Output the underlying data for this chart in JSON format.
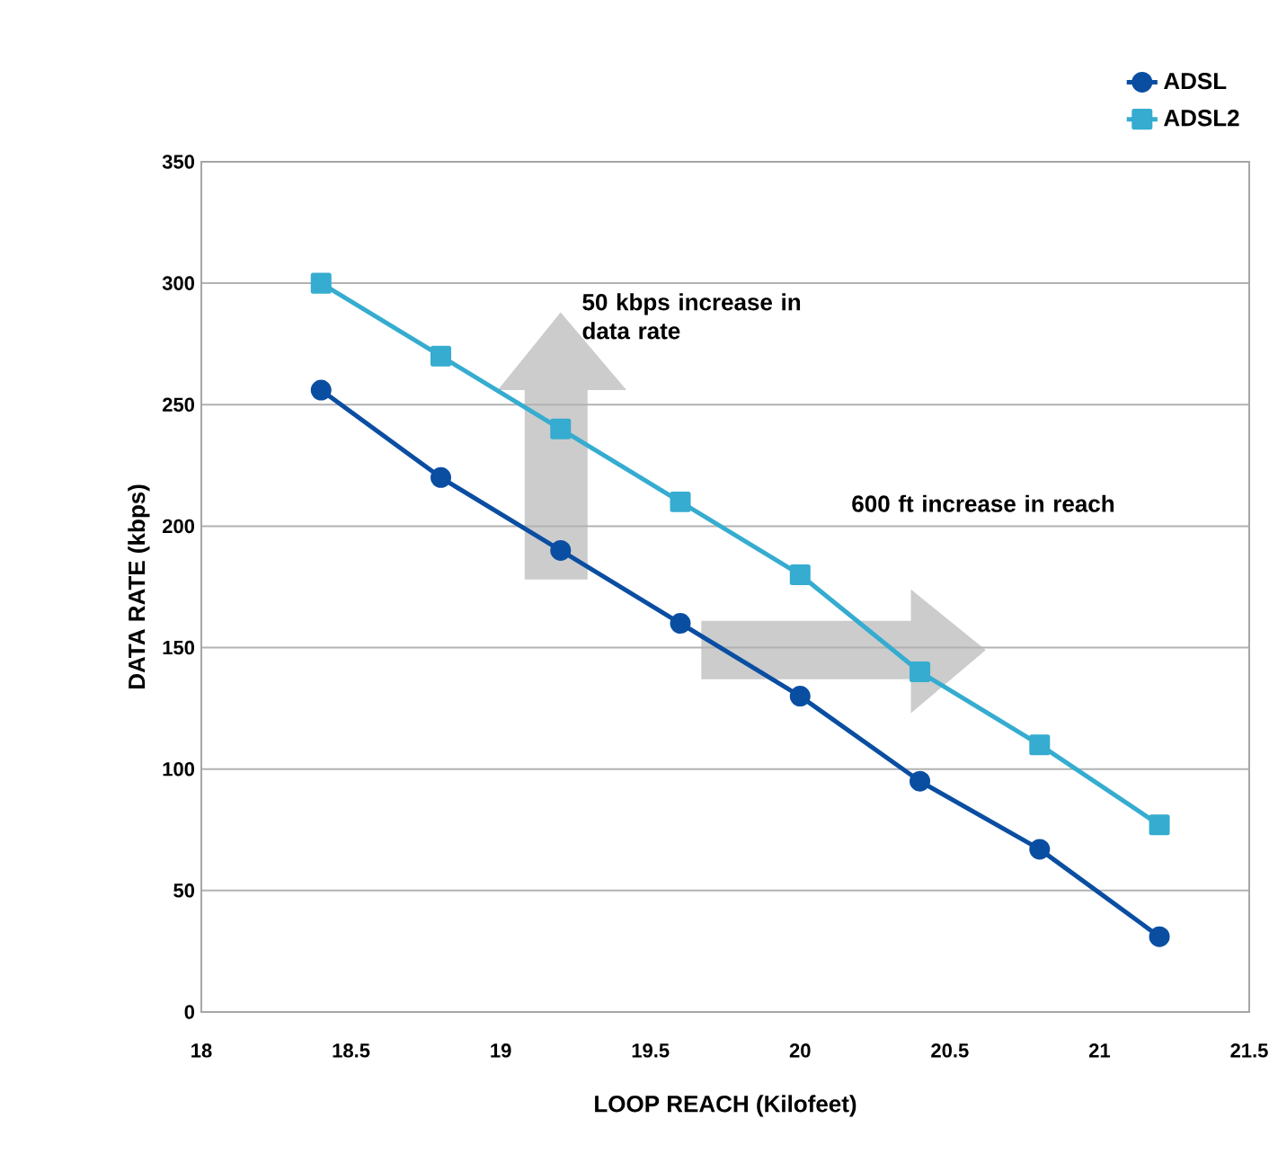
{
  "chart_data": {
    "type": "line",
    "xlabel": "LOOP REACH (Kilofeet)",
    "ylabel": "DATA RATE (kbps)",
    "xlim": [
      18,
      21.5
    ],
    "xticks": [
      18,
      18.5,
      19,
      19.5,
      20,
      20.5,
      21,
      21.5
    ],
    "ylim": [
      0,
      350
    ],
    "yticks": [
      0,
      50,
      100,
      150,
      200,
      250,
      300,
      350
    ],
    "grid": "y",
    "legend": "top right",
    "series": [
      {
        "name": "ADSL",
        "color": "#0a4ea2",
        "marker": "circle",
        "x": [
          18.4,
          18.8,
          19.2,
          19.6,
          20.0,
          20.4,
          20.8,
          21.2
        ],
        "values": [
          256,
          220,
          190,
          160,
          130,
          95,
          67,
          31
        ]
      },
      {
        "name": "ADSL2",
        "color": "#35acd0",
        "marker": "square",
        "x": [
          18.4,
          18.8,
          19.2,
          19.6,
          20.0,
          20.4,
          20.8,
          21.2
        ],
        "values": [
          300,
          270,
          240,
          210,
          180,
          140,
          110,
          77
        ]
      }
    ],
    "annotations": [
      "50 kbps increase in data rate",
      "600 ft increase in reach"
    ]
  }
}
